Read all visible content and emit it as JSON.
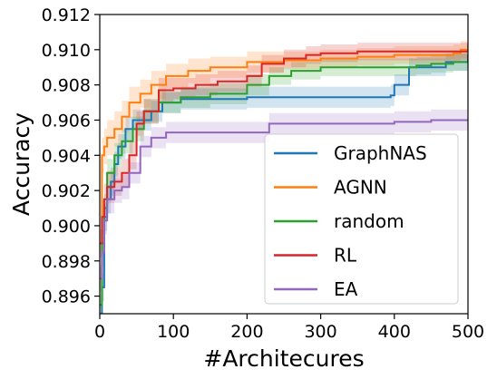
{
  "chart_data": {
    "type": "line",
    "title": "",
    "xlabel": "#Architecures",
    "ylabel": "Accuracy",
    "xlim": [
      0,
      500
    ],
    "ylim": [
      0.895,
      0.912
    ],
    "xticks": [
      0,
      100,
      200,
      300,
      400,
      500
    ],
    "xtick_labels": [
      "0",
      "100",
      "200",
      "300",
      "400",
      "500"
    ],
    "yticks": [
      0.896,
      0.898,
      0.9,
      0.902,
      0.904,
      0.906,
      0.908,
      0.91,
      0.912
    ],
    "ytick_labels": [
      "0.896",
      "0.898",
      "0.900",
      "0.902",
      "0.904",
      "0.906",
      "0.908",
      "0.910",
      "0.912"
    ],
    "grid": false,
    "legend_position": "lower-right",
    "shaded_band": "yes",
    "series": [
      {
        "name": "GraphNAS",
        "color": "#1f77b4",
        "x": [
          0,
          3,
          6,
          10,
          15,
          20,
          25,
          35,
          45,
          55,
          70,
          85,
          110,
          150,
          200,
          230,
          280,
          330,
          380,
          395,
          400,
          420,
          470,
          500
        ],
        "y": [
          0.8945,
          0.8965,
          0.9005,
          0.9015,
          0.9025,
          0.9035,
          0.9045,
          0.9055,
          0.906,
          0.906,
          0.9065,
          0.907,
          0.9072,
          0.9072,
          0.9073,
          0.9073,
          0.9073,
          0.9073,
          0.9073,
          0.9074,
          0.908,
          0.909,
          0.9093,
          0.9097
        ],
        "band": [
          0.0006,
          0.0008,
          0.0008,
          0.0008,
          0.0008,
          0.0007,
          0.0007,
          0.0007,
          0.0006,
          0.0006,
          0.0006,
          0.0006,
          0.0006,
          0.0006,
          0.0006,
          0.0006,
          0.0006,
          0.0006,
          0.0006,
          0.0006,
          0.0006,
          0.0005,
          0.0005,
          0.0005
        ]
      },
      {
        "name": "AGNN",
        "color": "#ff7f0e",
        "x": [
          0,
          3,
          6,
          10,
          20,
          30,
          40,
          55,
          70,
          90,
          120,
          150,
          200,
          250,
          300,
          350,
          400,
          450,
          480,
          490,
          500
        ],
        "y": [
          0.897,
          0.904,
          0.9045,
          0.905,
          0.9055,
          0.9062,
          0.907,
          0.9075,
          0.908,
          0.9085,
          0.9088,
          0.909,
          0.9093,
          0.9094,
          0.9095,
          0.9096,
          0.9097,
          0.9097,
          0.9098,
          0.91,
          0.9103
        ],
        "band": [
          0.0008,
          0.001,
          0.001,
          0.001,
          0.001,
          0.0009,
          0.0009,
          0.0008,
          0.0008,
          0.0007,
          0.0007,
          0.0006,
          0.0006,
          0.0005,
          0.0005,
          0.0005,
          0.0005,
          0.0005,
          0.0005,
          0.0005,
          0.0005
        ]
      },
      {
        "name": "random",
        "color": "#2ca02c",
        "x": [
          0,
          3,
          6,
          10,
          20,
          30,
          45,
          60,
          80,
          110,
          150,
          200,
          230,
          260,
          300,
          350,
          400,
          430,
          450,
          480,
          500
        ],
        "y": [
          0.8955,
          0.899,
          0.901,
          0.903,
          0.904,
          0.9048,
          0.9055,
          0.9065,
          0.907,
          0.9073,
          0.9075,
          0.908,
          0.9085,
          0.9088,
          0.909,
          0.909,
          0.909,
          0.9091,
          0.9092,
          0.9093,
          0.9093
        ],
        "band": [
          0.0006,
          0.0008,
          0.0008,
          0.0008,
          0.0007,
          0.0007,
          0.0007,
          0.0007,
          0.0006,
          0.0006,
          0.0006,
          0.0006,
          0.0005,
          0.0005,
          0.0005,
          0.0005,
          0.0005,
          0.0005,
          0.0005,
          0.0005,
          0.0005
        ]
      },
      {
        "name": "RL",
        "color": "#d62728",
        "x": [
          0,
          3,
          6,
          10,
          20,
          30,
          40,
          50,
          60,
          80,
          100,
          130,
          160,
          200,
          220,
          250,
          280,
          300,
          350,
          400,
          450,
          500
        ],
        "y": [
          0.899,
          0.9005,
          0.9015,
          0.9022,
          0.9025,
          0.903,
          0.904,
          0.9058,
          0.9065,
          0.9077,
          0.9078,
          0.908,
          0.9082,
          0.9085,
          0.9092,
          0.9095,
          0.9097,
          0.9098,
          0.9099,
          0.9099,
          0.9099,
          0.9099
        ],
        "band": [
          0.0008,
          0.0009,
          0.0009,
          0.0009,
          0.0008,
          0.0008,
          0.0008,
          0.0007,
          0.0007,
          0.0007,
          0.0006,
          0.0006,
          0.0006,
          0.0006,
          0.0005,
          0.0005,
          0.0005,
          0.0005,
          0.0005,
          0.0005,
          0.0005,
          0.0005
        ]
      },
      {
        "name": "EA",
        "color": "#9467bd",
        "x": [
          0,
          3,
          6,
          10,
          20,
          30,
          40,
          55,
          70,
          90,
          120,
          150,
          200,
          220,
          230,
          260,
          300,
          350,
          400,
          450,
          480,
          500
        ],
        "y": [
          0.897,
          0.8985,
          0.9003,
          0.9015,
          0.902,
          0.9022,
          0.903,
          0.9045,
          0.905,
          0.9053,
          0.9053,
          0.9053,
          0.9053,
          0.9053,
          0.9058,
          0.9058,
          0.9058,
          0.9058,
          0.9059,
          0.906,
          0.906,
          0.906
        ],
        "band": [
          0.0007,
          0.0008,
          0.0008,
          0.0008,
          0.0007,
          0.0007,
          0.0006,
          0.0006,
          0.0006,
          0.0006,
          0.0006,
          0.0006,
          0.0006,
          0.0006,
          0.0006,
          0.0006,
          0.0006,
          0.0006,
          0.0006,
          0.0006,
          0.0006,
          0.0006
        ]
      }
    ]
  }
}
